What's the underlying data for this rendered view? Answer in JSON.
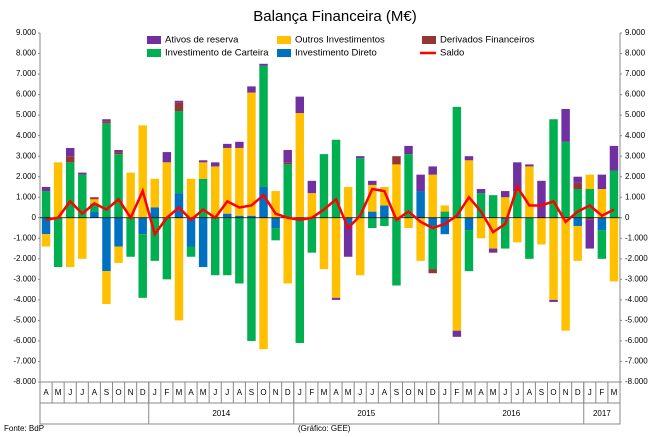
{
  "chart_data": {
    "type": "bar",
    "title": "Balança Financeira (M€)",
    "categories": [
      "A",
      "M",
      "J",
      "J",
      "A",
      "S",
      "O",
      "N",
      "D",
      "J",
      "F",
      "M",
      "A",
      "M",
      "J",
      "J",
      "A",
      "S",
      "O",
      "N",
      "D",
      "J",
      "F",
      "M",
      "A",
      "M",
      "J",
      "J",
      "A",
      "S",
      "O",
      "N",
      "D",
      "J",
      "F",
      "M",
      "A",
      "M",
      "J",
      "J",
      "A",
      "S",
      "O",
      "N",
      "D",
      "J",
      "F",
      "M"
    ],
    "year_labels": [
      "2014",
      "2015",
      "2016",
      "2017"
    ],
    "series": [
      {
        "name": "Ativos de reserva",
        "color": "#7030a0",
        "values": [
          200,
          0,
          400,
          100,
          0,
          100,
          100,
          0,
          0,
          0,
          500,
          100,
          0,
          100,
          200,
          200,
          300,
          300,
          100,
          0,
          600,
          800,
          600,
          0,
          -100,
          -1500,
          100,
          200,
          0,
          0,
          400,
          800,
          400,
          0,
          -300,
          200,
          200,
          -200,
          300,
          1400,
          100,
          1800,
          -100,
          1600,
          300,
          -1400,
          700,
          1200
        ]
      },
      {
        "name": "Outros Investimentos",
        "color": "#ffc000",
        "values": [
          -600,
          2700,
          -2400,
          -2000,
          200,
          -1600,
          -800,
          2200,
          4500,
          1400,
          2700,
          -5000,
          1900,
          800,
          2500,
          3200,
          3300,
          6000,
          -6400,
          1300,
          -3200,
          5100,
          1200,
          -2500,
          -3900,
          1500,
          -2800,
          1300,
          900,
          2600,
          -500,
          -2100,
          2100,
          300,
          -5500,
          2800,
          -1000,
          -1500,
          1000,
          -1200,
          2500,
          -1300,
          -4000,
          -5500,
          -1700,
          700,
          1400,
          -3100
        ]
      },
      {
        "name": "Derivados Financeiros",
        "color": "#943634",
        "values": [
          0,
          0,
          300,
          0,
          100,
          100,
          100,
          0,
          0,
          0,
          0,
          400,
          0,
          0,
          0,
          0,
          0,
          0,
          0,
          0,
          100,
          0,
          0,
          0,
          0,
          0,
          0,
          0,
          0,
          400,
          0,
          0,
          -200,
          0,
          0,
          0,
          0,
          0,
          0,
          0,
          0,
          0,
          0,
          0,
          300,
          -100,
          0,
          0
        ]
      },
      {
        "name": "Investimento de Carteira",
        "color": "#00b050",
        "values": [
          1300,
          -2400,
          2700,
          2100,
          400,
          4600,
          3100,
          -1900,
          -3100,
          -2100,
          -3000,
          4000,
          -500,
          1900,
          -2800,
          -2800,
          -3200,
          -6000,
          5900,
          -600,
          2600,
          -6100,
          -1700,
          3100,
          3800,
          0,
          2900,
          -500,
          -400,
          -3300,
          3100,
          0,
          -2100,
          300,
          5400,
          -2000,
          1200,
          1100,
          -1400,
          1300,
          -2000,
          0,
          4800,
          3700,
          1400,
          1400,
          -1400,
          2300
        ]
      },
      {
        "name": "Investimento Direto",
        "color": "#0070c0",
        "values": [
          -800,
          0,
          0,
          0,
          300,
          -2600,
          -1400,
          0,
          -800,
          500,
          0,
          1200,
          -1400,
          -2400,
          0,
          200,
          100,
          100,
          1500,
          -500,
          0,
          0,
          0,
          0,
          0,
          -400,
          0,
          300,
          600,
          0,
          0,
          1300,
          -400,
          -800,
          0,
          -600,
          0,
          0,
          -100,
          0,
          0,
          0,
          0,
          0,
          -400,
          0,
          -600,
          0
        ]
      },
      {
        "name": "Saldo",
        "type": "line",
        "color": "#ff0000",
        "values": [
          -100,
          0,
          800,
          200,
          700,
          400,
          900,
          0,
          1300,
          -800,
          0,
          500,
          -100,
          400,
          0,
          800,
          500,
          600,
          1100,
          200,
          0,
          -100,
          0,
          400,
          900,
          -500,
          100,
          1400,
          1300,
          -100,
          300,
          -200,
          -500,
          -300,
          100,
          1000,
          300,
          -700,
          -300,
          1500,
          600,
          600,
          800,
          -200,
          300,
          600,
          100,
          400
        ]
      }
    ],
    "ylim": [
      -8000,
      9000
    ],
    "yticks": [
      {
        "value": -8000,
        "label": "-8.000"
      },
      {
        "value": -7000,
        "label": "-7.000"
      },
      {
        "value": -6000,
        "label": "-6.000"
      },
      {
        "value": -5000,
        "label": "-5.000"
      },
      {
        "value": -4000,
        "label": "-4.000"
      },
      {
        "value": -3000,
        "label": "-3.000"
      },
      {
        "value": -2000,
        "label": "-2.000"
      },
      {
        "value": -1000,
        "label": "-1.000"
      },
      0,
      {
        "value": 1000,
        "label": "1.000"
      },
      {
        "value": 2000,
        "label": "2.000"
      },
      {
        "value": 3000,
        "label": "3.000"
      },
      {
        "value": 4000,
        "label": "4.000"
      },
      {
        "value": 5000,
        "label": "5.000"
      },
      {
        "value": 6000,
        "label": "6.000"
      },
      {
        "value": 7000,
        "label": "7.000"
      },
      {
        "value": 8000,
        "label": "8.000"
      },
      {
        "value": 9000,
        "label": "9.000"
      }
    ],
    "source": "Fonte: BdP",
    "credit": "(Gráfico: GEE)"
  }
}
